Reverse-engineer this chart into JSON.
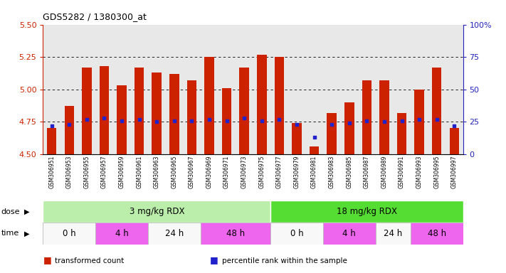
{
  "title": "GDS5282 / 1380300_at",
  "samples": [
    "GSM306951",
    "GSM306953",
    "GSM306955",
    "GSM306957",
    "GSM306959",
    "GSM306961",
    "GSM306963",
    "GSM306965",
    "GSM306967",
    "GSM306969",
    "GSM306971",
    "GSM306973",
    "GSM306975",
    "GSM306977",
    "GSM306979",
    "GSM306981",
    "GSM306983",
    "GSM306985",
    "GSM306987",
    "GSM306989",
    "GSM306991",
    "GSM306993",
    "GSM306995",
    "GSM306997"
  ],
  "bar_values": [
    4.7,
    4.87,
    5.17,
    5.18,
    5.03,
    5.17,
    5.13,
    5.12,
    5.07,
    5.25,
    5.01,
    5.17,
    5.27,
    5.25,
    4.74,
    4.56,
    4.82,
    4.9,
    5.07,
    5.07,
    4.82,
    5.0,
    5.17,
    4.7
  ],
  "blue_dot_values": [
    4.72,
    4.73,
    4.77,
    4.78,
    4.76,
    4.77,
    4.75,
    4.76,
    4.76,
    4.77,
    4.76,
    4.78,
    4.76,
    4.77,
    4.73,
    4.63,
    4.73,
    4.74,
    4.76,
    4.75,
    4.76,
    4.77,
    4.77,
    4.72
  ],
  "bar_color": "#cc2200",
  "dot_color": "#2222cc",
  "ylim_left": [
    4.5,
    5.5
  ],
  "ylim_right": [
    0,
    100
  ],
  "yticks_left": [
    4.5,
    4.75,
    5.0,
    5.25,
    5.5
  ],
  "yticks_right": [
    0,
    25,
    50,
    75,
    100
  ],
  "ytick_labels_right": [
    "0",
    "25",
    "50",
    "75",
    "100%"
  ],
  "hlines": [
    4.75,
    5.0,
    5.25
  ],
  "dose_groups": [
    {
      "label": "3 mg/kg RDX",
      "start": 0,
      "end": 13,
      "color": "#bbeeaa"
    },
    {
      "label": "18 mg/kg RDX",
      "start": 13,
      "end": 24,
      "color": "#55dd33"
    }
  ],
  "time_groups": [
    {
      "label": "0 h",
      "start": 0,
      "end": 3,
      "color": "#f8f8f8"
    },
    {
      "label": "4 h",
      "start": 3,
      "end": 6,
      "color": "#ee66ee"
    },
    {
      "label": "24 h",
      "start": 6,
      "end": 9,
      "color": "#f8f8f8"
    },
    {
      "label": "48 h",
      "start": 9,
      "end": 13,
      "color": "#ee66ee"
    },
    {
      "label": "0 h",
      "start": 13,
      "end": 16,
      "color": "#f8f8f8"
    },
    {
      "label": "4 h",
      "start": 16,
      "end": 19,
      "color": "#ee66ee"
    },
    {
      "label": "24 h",
      "start": 19,
      "end": 21,
      "color": "#f8f8f8"
    },
    {
      "label": "48 h",
      "start": 21,
      "end": 24,
      "color": "#ee66ee"
    }
  ],
  "legend_items": [
    {
      "label": "transformed count",
      "color": "#cc2200"
    },
    {
      "label": "percentile rank within the sample",
      "color": "#2222cc"
    }
  ],
  "bar_width": 0.55,
  "base_value": 4.5,
  "main_bg": "#e8e8e8",
  "xtick_bg": "#cccccc"
}
